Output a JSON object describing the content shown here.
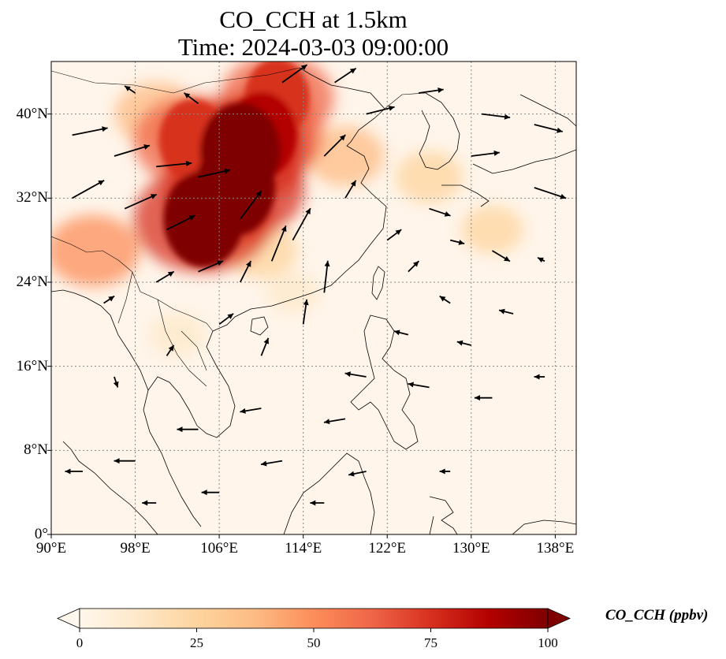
{
  "title": {
    "line1": "CO_CCH at 1.5km",
    "line2": "Time: 2024-03-03 09:00:00"
  },
  "map": {
    "variable": "CO_CCH",
    "height": "1.5km",
    "lon_range": [
      90,
      140
    ],
    "lat_range": [
      0,
      45
    ],
    "x_ticks": [
      "90°E",
      "98°E",
      "106°E",
      "114°E",
      "122°E",
      "130°E",
      "138°E"
    ],
    "y_ticks": [
      "0°",
      "8°N",
      "16°N",
      "24°N",
      "32°N",
      "40°N"
    ],
    "gridlines": "dotted",
    "colormap": "OrRd"
  },
  "colorbar": {
    "label": "CO_CCH (ppbv)",
    "ticks": [
      "0",
      "25",
      "50",
      "75",
      "100"
    ],
    "range": [
      0,
      100
    ],
    "extend": "both",
    "colors": [
      "#fff7ec",
      "#fee8c8",
      "#fdd49e",
      "#fdbb84",
      "#fc8d59",
      "#ef6548",
      "#d7301f",
      "#b30000",
      "#7f0000"
    ]
  },
  "chart_data": {
    "type": "heatmap",
    "description_units": "ppbv",
    "plumes": [
      {
        "lon": 107.5,
        "lat": 33.0,
        "value": 100
      },
      {
        "lon": 108.0,
        "lat": 36.5,
        "value": 100
      },
      {
        "lon": 104.5,
        "lat": 30.0,
        "value": 100
      },
      {
        "lon": 110.0,
        "lat": 38.0,
        "value": 85
      },
      {
        "lon": 103.5,
        "lat": 37.5,
        "value": 80
      },
      {
        "lon": 111.5,
        "lat": 41.5,
        "value": 75
      },
      {
        "lon": 100.0,
        "lat": 40.0,
        "value": 45
      },
      {
        "lon": 94.0,
        "lat": 27.0,
        "value": 55
      },
      {
        "lon": 118.0,
        "lat": 36.0,
        "value": 40
      },
      {
        "lon": 126.0,
        "lat": 34.0,
        "value": 30
      },
      {
        "lon": 132.0,
        "lat": 29.0,
        "value": 25
      },
      {
        "lon": 110.0,
        "lat": 27.0,
        "value": 35
      },
      {
        "lon": 102.0,
        "lat": 19.0,
        "value": 18
      },
      {
        "lon": 113.0,
        "lat": 23.0,
        "value": 15
      }
    ],
    "wind_vectors": [
      {
        "lon": 92,
        "lat": 38,
        "u": 1.0,
        "v": 0.2
      },
      {
        "lon": 96,
        "lat": 36,
        "u": 1.0,
        "v": 0.3
      },
      {
        "lon": 100,
        "lat": 35,
        "u": 1.0,
        "v": 0.1
      },
      {
        "lon": 92,
        "lat": 32,
        "u": 0.9,
        "v": 0.5
      },
      {
        "lon": 97,
        "lat": 31,
        "u": 0.9,
        "v": 0.4
      },
      {
        "lon": 101,
        "lat": 29,
        "u": 0.8,
        "v": 0.4
      },
      {
        "lon": 104,
        "lat": 34,
        "u": 0.9,
        "v": 0.2
      },
      {
        "lon": 108,
        "lat": 30,
        "u": 0.6,
        "v": 0.8
      },
      {
        "lon": 111,
        "lat": 26,
        "u": 0.4,
        "v": 1.0
      },
      {
        "lon": 113,
        "lat": 28,
        "u": 0.5,
        "v": 0.9
      },
      {
        "lon": 116,
        "lat": 23,
        "u": 0.1,
        "v": 0.9
      },
      {
        "lon": 114,
        "lat": 20,
        "u": 0.1,
        "v": 0.7
      },
      {
        "lon": 120,
        "lat": 40,
        "u": 0.8,
        "v": 0.2
      },
      {
        "lon": 125,
        "lat": 42,
        "u": 0.7,
        "v": 0.1
      },
      {
        "lon": 131,
        "lat": 40,
        "u": 0.8,
        "v": -0.1
      },
      {
        "lon": 136,
        "lat": 39,
        "u": 0.8,
        "v": -0.2
      },
      {
        "lon": 130,
        "lat": 36,
        "u": 0.8,
        "v": 0.1
      },
      {
        "lon": 136,
        "lat": 33,
        "u": 0.9,
        "v": -0.3
      },
      {
        "lon": 126,
        "lat": 31,
        "u": 0.6,
        "v": -0.2
      },
      {
        "lon": 132,
        "lat": 27,
        "u": 0.5,
        "v": -0.3
      },
      {
        "lon": 122,
        "lat": 28,
        "u": 0.4,
        "v": 0.3
      },
      {
        "lon": 128,
        "lat": 22,
        "u": -0.3,
        "v": 0.2
      },
      {
        "lon": 134,
        "lat": 21,
        "u": -0.4,
        "v": 0.1
      },
      {
        "lon": 124,
        "lat": 19,
        "u": -0.4,
        "v": 0.1
      },
      {
        "lon": 120,
        "lat": 15,
        "u": -0.6,
        "v": 0.1
      },
      {
        "lon": 126,
        "lat": 14,
        "u": -0.6,
        "v": 0.1
      },
      {
        "lon": 132,
        "lat": 13,
        "u": -0.5,
        "v": 0.0
      },
      {
        "lon": 118,
        "lat": 11,
        "u": -0.6,
        "v": -0.1
      },
      {
        "lon": 110,
        "lat": 12,
        "u": -0.6,
        "v": -0.1
      },
      {
        "lon": 104,
        "lat": 10,
        "u": -0.6,
        "v": 0.0
      },
      {
        "lon": 98,
        "lat": 7,
        "u": -0.6,
        "v": 0.0
      },
      {
        "lon": 93,
        "lat": 6,
        "u": -0.5,
        "v": 0.0
      },
      {
        "lon": 112,
        "lat": 7,
        "u": -0.6,
        "v": -0.1
      },
      {
        "lon": 120,
        "lat": 6,
        "u": -0.5,
        "v": -0.1
      },
      {
        "lon": 106,
        "lat": 4,
        "u": -0.5,
        "v": 0.0
      },
      {
        "lon": 100,
        "lat": 3,
        "u": -0.4,
        "v": 0.0
      },
      {
        "lon": 116,
        "lat": 3,
        "u": -0.4,
        "v": 0.0
      },
      {
        "lon": 128,
        "lat": 6,
        "u": -0.3,
        "v": 0.0
      },
      {
        "lon": 96,
        "lat": 15,
        "u": 0.1,
        "v": -0.3
      },
      {
        "lon": 101,
        "lat": 17,
        "u": 0.2,
        "v": 0.3
      },
      {
        "lon": 106,
        "lat": 20,
        "u": 0.4,
        "v": 0.3
      },
      {
        "lon": 95,
        "lat": 22,
        "u": 0.3,
        "v": 0.2
      },
      {
        "lon": 100,
        "lat": 24,
        "u": 0.5,
        "v": 0.3
      },
      {
        "lon": 104,
        "lat": 25,
        "u": 0.7,
        "v": 0.3
      },
      {
        "lon": 108,
        "lat": 24,
        "u": 0.3,
        "v": 0.6
      },
      {
        "lon": 116,
        "lat": 36,
        "u": 0.6,
        "v": 0.6
      },
      {
        "lon": 118,
        "lat": 32,
        "u": 0.3,
        "v": 0.5
      },
      {
        "lon": 112,
        "lat": 43,
        "u": 0.7,
        "v": 0.5
      },
      {
        "lon": 117,
        "lat": 43,
        "u": 0.6,
        "v": 0.4
      },
      {
        "lon": 104,
        "lat": 41,
        "u": -0.4,
        "v": 0.3
      },
      {
        "lon": 98,
        "lat": 42,
        "u": -0.3,
        "v": 0.2
      },
      {
        "lon": 137,
        "lat": 26,
        "u": -0.2,
        "v": 0.1
      },
      {
        "lon": 137,
        "lat": 15,
        "u": -0.3,
        "v": 0.0
      },
      {
        "lon": 130,
        "lat": 18,
        "u": -0.4,
        "v": 0.1
      },
      {
        "lon": 110,
        "lat": 17,
        "u": 0.2,
        "v": 0.5
      },
      {
        "lon": 124,
        "lat": 25,
        "u": 0.3,
        "v": 0.3
      },
      {
        "lon": 128,
        "lat": 28,
        "u": 0.4,
        "v": -0.1
      }
    ]
  }
}
